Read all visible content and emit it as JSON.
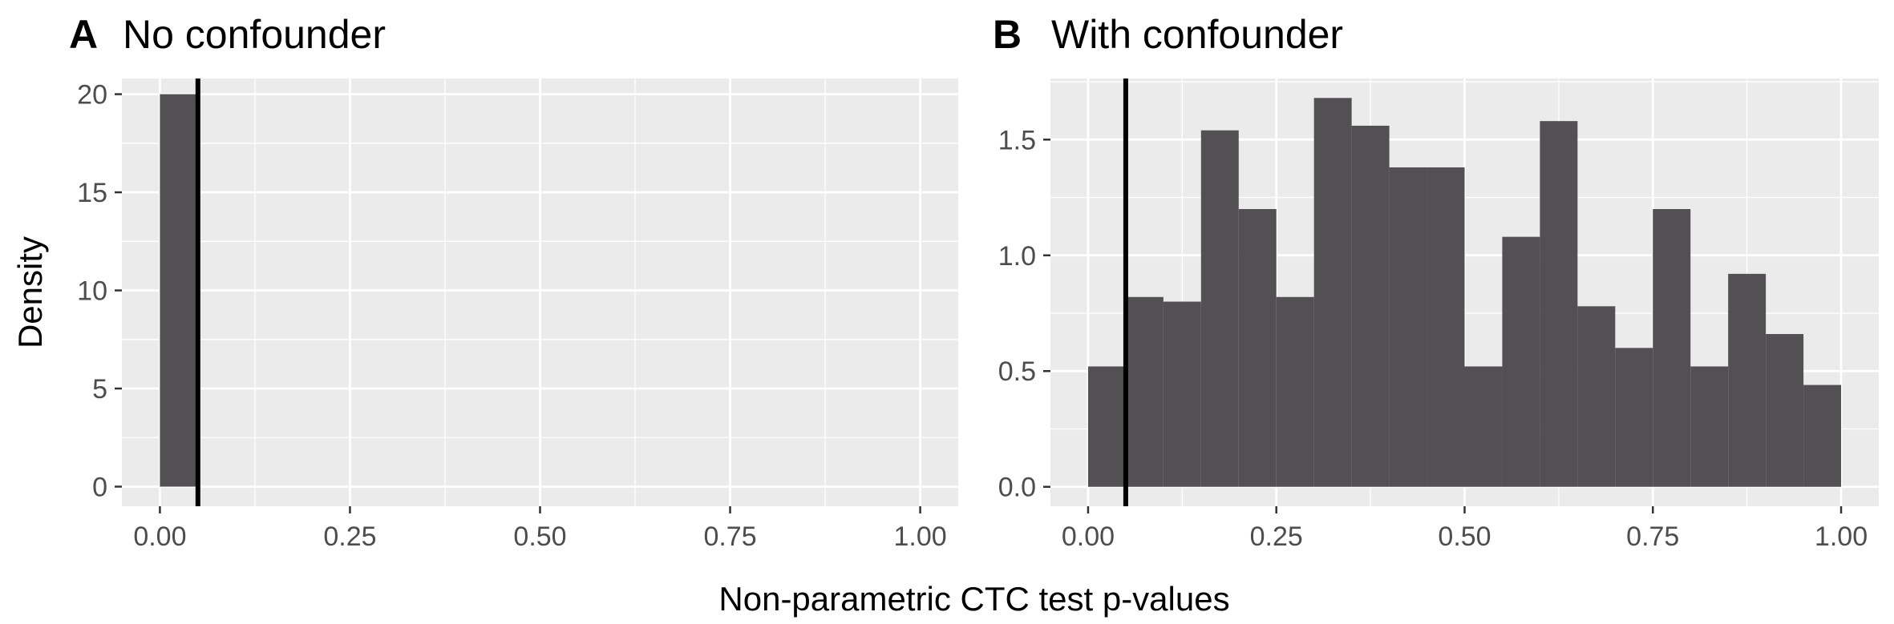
{
  "figure": {
    "ylabel": "Density",
    "xlabel": "Non-parametric CTC test p-values"
  },
  "colors": {
    "panel_background": "#ebebeb",
    "grid_major": "#ffffff",
    "bar_fill": "#525052",
    "reference_line": "#000000",
    "tick_text": "#4d4d4d"
  },
  "chart_data": [
    {
      "type": "bar",
      "panel": "A",
      "title": "No confounder",
      "bin_width": 0.05,
      "bins": [
        {
          "start": 0.0,
          "end": 0.05,
          "density": 20
        }
      ],
      "xlim": [
        -0.05,
        1.05
      ],
      "ylim": [
        -1,
        20.8
      ],
      "x_ticks": [
        0,
        0.25,
        0.5,
        0.75,
        1
      ],
      "x_tick_labels": [
        "0.00",
        "0.25",
        "0.50",
        "0.75",
        "1.00"
      ],
      "y_ticks": [
        0,
        5,
        10,
        15,
        20
      ],
      "y_tick_labels": [
        "0",
        "5",
        "10",
        "15",
        "20"
      ],
      "vline": 0.05,
      "grid": true
    },
    {
      "type": "bar",
      "panel": "B",
      "title": "With confounder",
      "bin_width": 0.05,
      "bins": [
        {
          "start": 0.0,
          "end": 0.05,
          "density": 0.52
        },
        {
          "start": 0.05,
          "end": 0.1,
          "density": 0.82
        },
        {
          "start": 0.1,
          "end": 0.15,
          "density": 0.8
        },
        {
          "start": 0.15,
          "end": 0.2,
          "density": 1.54
        },
        {
          "start": 0.2,
          "end": 0.25,
          "density": 1.2
        },
        {
          "start": 0.25,
          "end": 0.3,
          "density": 0.82
        },
        {
          "start": 0.3,
          "end": 0.35,
          "density": 1.68
        },
        {
          "start": 0.35,
          "end": 0.4,
          "density": 1.56
        },
        {
          "start": 0.4,
          "end": 0.45,
          "density": 1.38
        },
        {
          "start": 0.45,
          "end": 0.5,
          "density": 1.38
        },
        {
          "start": 0.5,
          "end": 0.55,
          "density": 0.52
        },
        {
          "start": 0.55,
          "end": 0.6,
          "density": 1.08
        },
        {
          "start": 0.6,
          "end": 0.65,
          "density": 1.58
        },
        {
          "start": 0.65,
          "end": 0.7,
          "density": 0.78
        },
        {
          "start": 0.7,
          "end": 0.75,
          "density": 0.6
        },
        {
          "start": 0.75,
          "end": 0.8,
          "density": 1.2
        },
        {
          "start": 0.8,
          "end": 0.85,
          "density": 0.52
        },
        {
          "start": 0.85,
          "end": 0.9,
          "density": 0.92
        },
        {
          "start": 0.9,
          "end": 0.95,
          "density": 0.66
        },
        {
          "start": 0.95,
          "end": 1.0,
          "density": 0.44
        }
      ],
      "xlim": [
        -0.05,
        1.05
      ],
      "ylim": [
        -0.084,
        1.764
      ],
      "x_ticks": [
        0,
        0.25,
        0.5,
        0.75,
        1
      ],
      "x_tick_labels": [
        "0.00",
        "0.25",
        "0.50",
        "0.75",
        "1.00"
      ],
      "y_ticks": [
        0,
        0.5,
        1.0,
        1.5
      ],
      "y_tick_labels": [
        "0.0",
        "0.5",
        "1.0",
        "1.5"
      ],
      "vline": 0.05,
      "grid": true
    }
  ]
}
